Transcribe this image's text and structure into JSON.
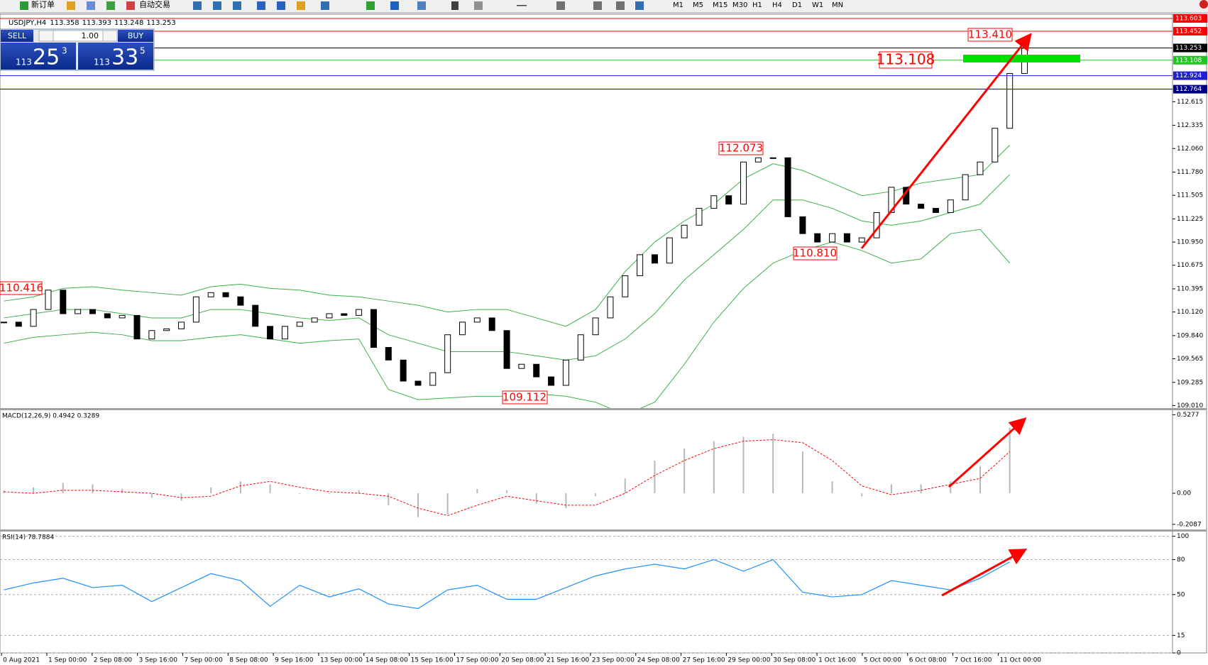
{
  "toolbar": {
    "buttons": [
      "新订单",
      "自动交易"
    ],
    "timeframes": [
      "M1",
      "M5",
      "M15",
      "M30",
      "H1",
      "H4",
      "D1",
      "W1",
      "MN"
    ]
  },
  "header": {
    "symbol": "USDJPY,H4",
    "ohlc": [
      "113.358",
      "113.393",
      "113.248",
      "113.253"
    ]
  },
  "trade_panel": {
    "sell": "SELL",
    "lot": "1.00",
    "buy": "BUY",
    "bid": {
      "big": "113",
      "pips": "25",
      "point": "3"
    },
    "ask": {
      "big": "113",
      "pips": "33",
      "point": "5"
    }
  },
  "price_panel": {
    "ylim": [
      108.98,
      113.62
    ],
    "yticks": [
      112.615,
      112.335,
      {
        "value": 112.06,
        "label": "112.060"
      },
      {
        "value": 111.78,
        "label": "111.780"
      },
      111.505,
      111.225,
      {
        "value": 110.95,
        "label": "110.950"
      },
      110.675,
      110.395,
      {
        "value": 110.12,
        "label": "110.120"
      },
      {
        "value": 109.84,
        "label": "109.840"
      },
      109.565,
      109.285,
      {
        "value": 109.01,
        "label": "109.010"
      }
    ],
    "close": [
      110.0,
      109.95,
      110.15,
      110.38,
      110.1,
      110.15,
      110.1,
      110.05,
      110.08,
      109.8,
      109.9,
      109.92,
      110.0,
      110.3,
      110.35,
      110.3,
      110.2,
      109.95,
      109.8,
      109.95,
      110.0,
      110.05,
      110.1,
      110.08,
      110.15,
      109.7,
      109.55,
      109.3,
      109.25,
      109.4,
      109.85,
      110.0,
      110.05,
      109.9,
      109.45,
      109.5,
      109.35,
      109.25,
      109.55,
      109.85,
      110.05,
      110.3,
      110.55,
      110.8,
      110.7,
      111.0,
      111.15,
      111.35,
      111.5,
      111.4,
      111.9,
      111.95,
      111.95,
      111.25,
      111.05,
      110.95,
      111.05,
      110.95,
      111.0,
      111.3,
      111.6,
      111.4,
      111.35,
      111.3,
      111.45,
      111.75,
      111.9,
      112.3,
      112.95,
      113.25
    ],
    "band_color": "#3cb04a",
    "bollinger": {
      "upper": [
        110.25,
        110.3,
        110.4,
        110.42,
        110.38,
        110.35,
        110.32,
        110.42,
        110.45,
        110.4,
        110.38,
        110.32,
        110.3,
        110.25,
        110.2,
        110.12,
        110.15,
        110.15,
        110.05,
        109.95,
        110.15,
        110.6,
        110.95,
        111.2,
        111.4,
        111.7,
        111.88,
        111.8,
        111.65,
        111.5,
        111.55,
        111.65,
        111.7,
        111.75,
        112.1
      ],
      "middle": [
        110.05,
        110.1,
        110.15,
        110.15,
        110.1,
        110.05,
        110.05,
        110.15,
        110.15,
        110.1,
        110.05,
        110.02,
        110.05,
        109.85,
        109.75,
        109.65,
        109.65,
        109.65,
        109.6,
        109.55,
        109.6,
        109.8,
        110.1,
        110.5,
        110.8,
        111.1,
        111.45,
        111.45,
        111.35,
        111.2,
        111.15,
        111.2,
        111.3,
        111.4,
        111.75
      ],
      "lower": [
        109.75,
        109.82,
        109.85,
        109.88,
        109.85,
        109.78,
        109.78,
        109.82,
        109.85,
        109.8,
        109.75,
        109.78,
        109.8,
        109.2,
        109.08,
        109.1,
        109.12,
        109.12,
        109.15,
        109.12,
        109.05,
        108.9,
        109.05,
        109.5,
        110.0,
        110.4,
        110.7,
        110.85,
        110.95,
        110.85,
        110.7,
        110.75,
        111.05,
        111.1,
        110.7
      ]
    },
    "levels": [
      {
        "value": 113.603,
        "color": "#ff0000"
      },
      {
        "value": 113.452,
        "color": "#ff0000"
      },
      {
        "value": 113.253,
        "color": "#000000"
      },
      {
        "value": 113.108,
        "color": "#22c322"
      },
      {
        "value": 112.924,
        "color": "#2020d0"
      },
      {
        "value": 112.764,
        "color": "#000080"
      }
    ],
    "annotations": [
      "110.416",
      "109.112",
      "110.810",
      "112.073",
      "113.410",
      "113.108"
    ]
  },
  "macd_panel": {
    "label": "MACD(12,26,9) 0.4942 0.3289",
    "ylim": [
      -0.243,
      0.558
    ],
    "yticks": [
      0.5277,
      {
        "value": 0,
        "label": "0.00"
      },
      -0.2087
    ],
    "histogram_color": "#b8b8b8",
    "signal_color": "#ff0000",
    "histogram": [
      0.02,
      0.04,
      0.07,
      0.06,
      0.03,
      -0.03,
      -0.05,
      0.04,
      0.08,
      0.06,
      0.0,
      0.0,
      0.02,
      -0.08,
      -0.16,
      -0.14,
      0.03,
      0.02,
      -0.07,
      -0.1,
      -0.02,
      0.1,
      0.22,
      0.3,
      0.35,
      0.38,
      0.4,
      0.28,
      0.08,
      -0.02,
      0.06,
      0.06,
      0.08,
      0.18,
      0.44
    ],
    "signal": [
      0.01,
      0.0,
      0.02,
      0.02,
      0.01,
      0.0,
      -0.03,
      -0.02,
      0.05,
      0.08,
      0.04,
      0.01,
      0.0,
      -0.02,
      -0.1,
      -0.15,
      -0.08,
      -0.02,
      -0.05,
      -0.08,
      -0.08,
      0.0,
      0.12,
      0.22,
      0.3,
      0.35,
      0.36,
      0.34,
      0.22,
      0.05,
      -0.01,
      0.02,
      0.06,
      0.1,
      0.28
    ]
  },
  "rsi_panel": {
    "label": "RSI(14) 78.7884",
    "ylim": [
      0,
      104
    ],
    "yticks": [
      100,
      80,
      50,
      15,
      0
    ],
    "color": "#1e90ff",
    "values": [
      54,
      60,
      64,
      56,
      58,
      44,
      56,
      68,
      62,
      40,
      58,
      48,
      55,
      42,
      38,
      54,
      58,
      46,
      46,
      56,
      66,
      72,
      76,
      72,
      80,
      70,
      80,
      52,
      48,
      50,
      62,
      58,
      54,
      64,
      78
    ]
  },
  "x_labels": [
    "0 Aug 2021",
    "1 Sep 00:00",
    "2 Sep 08:00",
    "3 Sep 16:00",
    "7 Sep 00:00",
    "8 Sep 08:00",
    "9 Sep 16:00",
    "13 Sep 00:00",
    "14 Sep 08:00",
    "15 Sep 16:00",
    "17 Sep 00:00",
    "20 Sep 08:00",
    "21 Sep 16:00",
    "23 Sep 00:00",
    "24 Sep 08:00",
    "27 Sep 16:00",
    "29 Sep 00:00",
    "30 Sep 08:00",
    "1 Oct 16:00",
    "5 Oct 00:00",
    "6 Oct 08:00",
    "7 Oct 16:00",
    "11 Oct 00:00"
  ]
}
